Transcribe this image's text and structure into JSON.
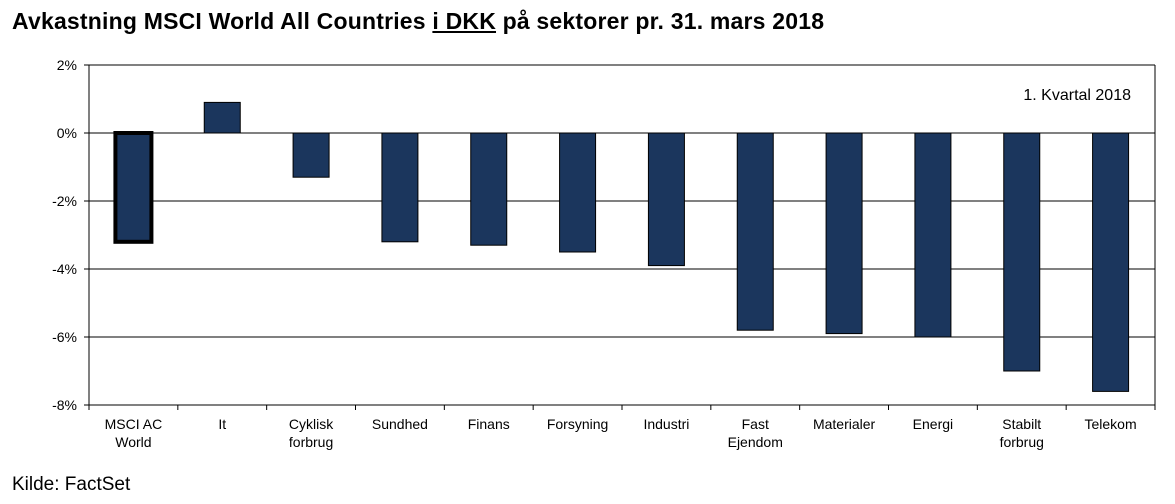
{
  "title_prefix": "Avkastning MSCI World All Countries ",
  "title_underlined": "i DKK",
  "title_suffix": " på sektorer pr. 31. mars 2018",
  "source": "Kilde: FactSet",
  "colors": {
    "bar": "#1b365d",
    "bar_outline": "#000000",
    "highlight_outline": "#000000",
    "grid": "#000000"
  },
  "chart_data": {
    "type": "bar",
    "title": "Avkastning MSCI World All Countries i DKK på sektorer pr. 31. mars 2018",
    "annotation": "1. Kvartal 2018",
    "categories": [
      [
        "MSCI AC",
        "World"
      ],
      [
        "It"
      ],
      [
        "Cyklisk",
        "forbrug"
      ],
      [
        "Sundhed"
      ],
      [
        "Finans"
      ],
      [
        "Forsyning"
      ],
      [
        "Industri"
      ],
      [
        "Fast",
        "Ejendom"
      ],
      [
        "Materialer"
      ],
      [
        "Energi"
      ],
      [
        "Stabilt",
        "forbrug"
      ],
      [
        "Telekom"
      ]
    ],
    "values": [
      -3.2,
      0.9,
      -1.3,
      -3.2,
      -3.3,
      -3.5,
      -3.9,
      -5.8,
      -5.9,
      -6.0,
      -7.0,
      -7.6
    ],
    "highlight_index": 0,
    "ylim": [
      -8,
      2
    ],
    "yticks": [
      2,
      0,
      -2,
      -4,
      -6,
      -8
    ],
    "ytick_labels": [
      "2%",
      "0%",
      "-2%",
      "-4%",
      "-6%",
      "-8%"
    ],
    "grid": true,
    "xlabel": "",
    "ylabel": ""
  }
}
